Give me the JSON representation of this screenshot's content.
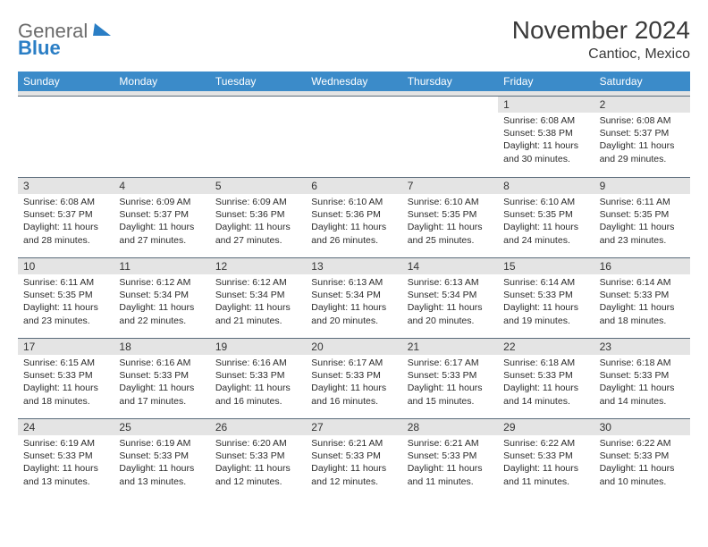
{
  "logo": {
    "text1": "General",
    "text2": "Blue"
  },
  "title": "November 2024",
  "subtitle": "Cantioc, Mexico",
  "colors": {
    "header_bg": "#3b8bc9",
    "header_text": "#ffffff",
    "daynum_bg": "#e4e4e4",
    "border": "#5a6b7a",
    "text": "#2b2b2b"
  },
  "dayNames": [
    "Sunday",
    "Monday",
    "Tuesday",
    "Wednesday",
    "Thursday",
    "Friday",
    "Saturday"
  ],
  "weeks": [
    [
      {
        "n": "",
        "sr": "",
        "ss": "",
        "dl": ""
      },
      {
        "n": "",
        "sr": "",
        "ss": "",
        "dl": ""
      },
      {
        "n": "",
        "sr": "",
        "ss": "",
        "dl": ""
      },
      {
        "n": "",
        "sr": "",
        "ss": "",
        "dl": ""
      },
      {
        "n": "",
        "sr": "",
        "ss": "",
        "dl": ""
      },
      {
        "n": "1",
        "sr": "Sunrise: 6:08 AM",
        "ss": "Sunset: 5:38 PM",
        "dl": "Daylight: 11 hours and 30 minutes."
      },
      {
        "n": "2",
        "sr": "Sunrise: 6:08 AM",
        "ss": "Sunset: 5:37 PM",
        "dl": "Daylight: 11 hours and 29 minutes."
      }
    ],
    [
      {
        "n": "3",
        "sr": "Sunrise: 6:08 AM",
        "ss": "Sunset: 5:37 PM",
        "dl": "Daylight: 11 hours and 28 minutes."
      },
      {
        "n": "4",
        "sr": "Sunrise: 6:09 AM",
        "ss": "Sunset: 5:37 PM",
        "dl": "Daylight: 11 hours and 27 minutes."
      },
      {
        "n": "5",
        "sr": "Sunrise: 6:09 AM",
        "ss": "Sunset: 5:36 PM",
        "dl": "Daylight: 11 hours and 27 minutes."
      },
      {
        "n": "6",
        "sr": "Sunrise: 6:10 AM",
        "ss": "Sunset: 5:36 PM",
        "dl": "Daylight: 11 hours and 26 minutes."
      },
      {
        "n": "7",
        "sr": "Sunrise: 6:10 AM",
        "ss": "Sunset: 5:35 PM",
        "dl": "Daylight: 11 hours and 25 minutes."
      },
      {
        "n": "8",
        "sr": "Sunrise: 6:10 AM",
        "ss": "Sunset: 5:35 PM",
        "dl": "Daylight: 11 hours and 24 minutes."
      },
      {
        "n": "9",
        "sr": "Sunrise: 6:11 AM",
        "ss": "Sunset: 5:35 PM",
        "dl": "Daylight: 11 hours and 23 minutes."
      }
    ],
    [
      {
        "n": "10",
        "sr": "Sunrise: 6:11 AM",
        "ss": "Sunset: 5:35 PM",
        "dl": "Daylight: 11 hours and 23 minutes."
      },
      {
        "n": "11",
        "sr": "Sunrise: 6:12 AM",
        "ss": "Sunset: 5:34 PM",
        "dl": "Daylight: 11 hours and 22 minutes."
      },
      {
        "n": "12",
        "sr": "Sunrise: 6:12 AM",
        "ss": "Sunset: 5:34 PM",
        "dl": "Daylight: 11 hours and 21 minutes."
      },
      {
        "n": "13",
        "sr": "Sunrise: 6:13 AM",
        "ss": "Sunset: 5:34 PM",
        "dl": "Daylight: 11 hours and 20 minutes."
      },
      {
        "n": "14",
        "sr": "Sunrise: 6:13 AM",
        "ss": "Sunset: 5:34 PM",
        "dl": "Daylight: 11 hours and 20 minutes."
      },
      {
        "n": "15",
        "sr": "Sunrise: 6:14 AM",
        "ss": "Sunset: 5:33 PM",
        "dl": "Daylight: 11 hours and 19 minutes."
      },
      {
        "n": "16",
        "sr": "Sunrise: 6:14 AM",
        "ss": "Sunset: 5:33 PM",
        "dl": "Daylight: 11 hours and 18 minutes."
      }
    ],
    [
      {
        "n": "17",
        "sr": "Sunrise: 6:15 AM",
        "ss": "Sunset: 5:33 PM",
        "dl": "Daylight: 11 hours and 18 minutes."
      },
      {
        "n": "18",
        "sr": "Sunrise: 6:16 AM",
        "ss": "Sunset: 5:33 PM",
        "dl": "Daylight: 11 hours and 17 minutes."
      },
      {
        "n": "19",
        "sr": "Sunrise: 6:16 AM",
        "ss": "Sunset: 5:33 PM",
        "dl": "Daylight: 11 hours and 16 minutes."
      },
      {
        "n": "20",
        "sr": "Sunrise: 6:17 AM",
        "ss": "Sunset: 5:33 PM",
        "dl": "Daylight: 11 hours and 16 minutes."
      },
      {
        "n": "21",
        "sr": "Sunrise: 6:17 AM",
        "ss": "Sunset: 5:33 PM",
        "dl": "Daylight: 11 hours and 15 minutes."
      },
      {
        "n": "22",
        "sr": "Sunrise: 6:18 AM",
        "ss": "Sunset: 5:33 PM",
        "dl": "Daylight: 11 hours and 14 minutes."
      },
      {
        "n": "23",
        "sr": "Sunrise: 6:18 AM",
        "ss": "Sunset: 5:33 PM",
        "dl": "Daylight: 11 hours and 14 minutes."
      }
    ],
    [
      {
        "n": "24",
        "sr": "Sunrise: 6:19 AM",
        "ss": "Sunset: 5:33 PM",
        "dl": "Daylight: 11 hours and 13 minutes."
      },
      {
        "n": "25",
        "sr": "Sunrise: 6:19 AM",
        "ss": "Sunset: 5:33 PM",
        "dl": "Daylight: 11 hours and 13 minutes."
      },
      {
        "n": "26",
        "sr": "Sunrise: 6:20 AM",
        "ss": "Sunset: 5:33 PM",
        "dl": "Daylight: 11 hours and 12 minutes."
      },
      {
        "n": "27",
        "sr": "Sunrise: 6:21 AM",
        "ss": "Sunset: 5:33 PM",
        "dl": "Daylight: 11 hours and 12 minutes."
      },
      {
        "n": "28",
        "sr": "Sunrise: 6:21 AM",
        "ss": "Sunset: 5:33 PM",
        "dl": "Daylight: 11 hours and 11 minutes."
      },
      {
        "n": "29",
        "sr": "Sunrise: 6:22 AM",
        "ss": "Sunset: 5:33 PM",
        "dl": "Daylight: 11 hours and 11 minutes."
      },
      {
        "n": "30",
        "sr": "Sunrise: 6:22 AM",
        "ss": "Sunset: 5:33 PM",
        "dl": "Daylight: 11 hours and 10 minutes."
      }
    ]
  ]
}
